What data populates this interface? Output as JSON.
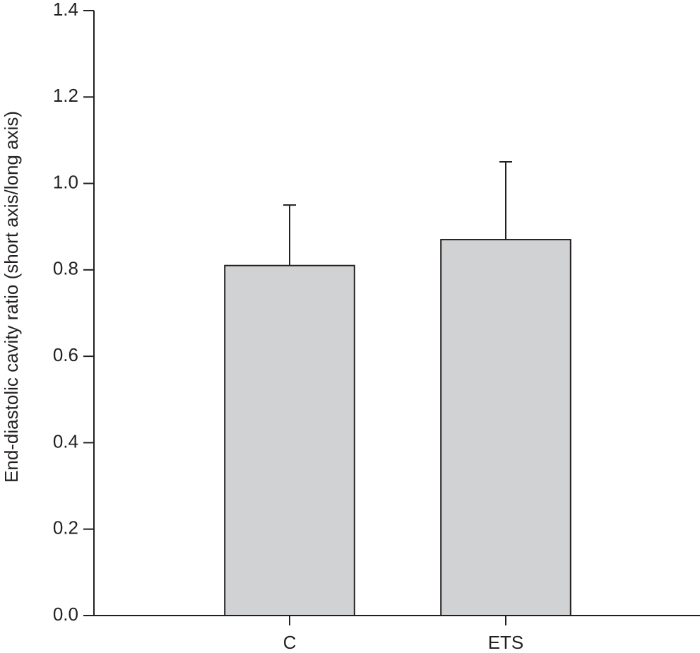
{
  "chart_data": {
    "type": "bar",
    "y_label": "End-diastolic cavity ratio (short axis/long axis)",
    "categories": [
      "C",
      "ETS"
    ],
    "values": [
      0.81,
      0.87
    ],
    "errors": [
      0.14,
      0.18
    ],
    "color": "#d1d2d4",
    "ylim": [
      0,
      1.4
    ],
    "yticks": [
      {
        "value": 0,
        "label": "0.0"
      },
      0.2,
      0.4,
      0.6,
      0.8,
      {
        "value": 1,
        "label": "1.0"
      },
      1.2,
      1.4
    ],
    "grid": false
  }
}
